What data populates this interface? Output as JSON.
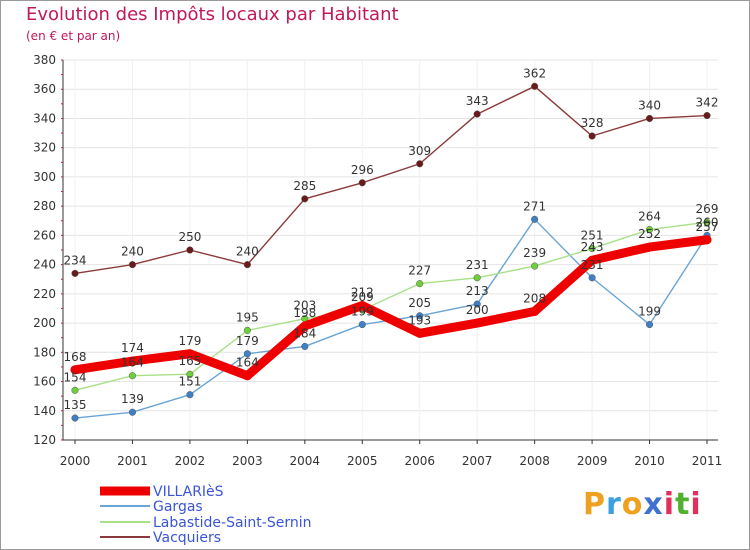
{
  "header": {
    "title": "Evolution des Impôts locaux par Habitant",
    "subtitle": "(en € et par an)"
  },
  "brand": {
    "logo_letters": [
      "P",
      "r",
      "o",
      "x",
      "i",
      "t",
      "i"
    ],
    "logo_colors": [
      "#f0a020",
      "#3ca0e0",
      "#f0a020",
      "#4070d0",
      "#e03060",
      "#50b030",
      "#e03060"
    ]
  },
  "chart_data": {
    "type": "line",
    "title": "Evolution des Impôts locaux par Habitant",
    "subtitle": "(en € et par an)",
    "xlabel": "",
    "ylabel": "",
    "categories": [
      "2000",
      "2001",
      "2002",
      "2003",
      "2004",
      "2005",
      "2006",
      "2007",
      "2008",
      "2009",
      "2010",
      "2011"
    ],
    "ylim": [
      120,
      380
    ],
    "yticks": [
      120,
      140,
      160,
      180,
      200,
      220,
      240,
      260,
      280,
      300,
      320,
      340,
      360,
      380
    ],
    "grid": "horizontal",
    "legend_position": "bottom-left",
    "series": [
      {
        "name": "VILLARIèS",
        "color": "#ee0000",
        "marker": "#ee0000",
        "values": [
          168,
          174,
          179,
          164,
          198,
          212,
          193,
          200,
          208,
          243,
          252,
          257
        ]
      },
      {
        "name": "Gargas",
        "color": "#6aa4d4",
        "marker": "#3f7fc6",
        "values": [
          135,
          139,
          151,
          179,
          184,
          199,
          205,
          213,
          271,
          231,
          199,
          260
        ]
      },
      {
        "name": "Labastide-Saint-Sernin",
        "color": "#a8e088",
        "marker": "#6fcf3a",
        "values": [
          154,
          164,
          165,
          195,
          203,
          209,
          227,
          231,
          239,
          251,
          264,
          269
        ]
      },
      {
        "name": "Vacquiers",
        "color": "#8a3a3a",
        "marker": "#6a1a1a",
        "values": [
          234,
          240,
          250,
          240,
          285,
          296,
          309,
          343,
          362,
          328,
          340,
          342
        ]
      }
    ]
  }
}
